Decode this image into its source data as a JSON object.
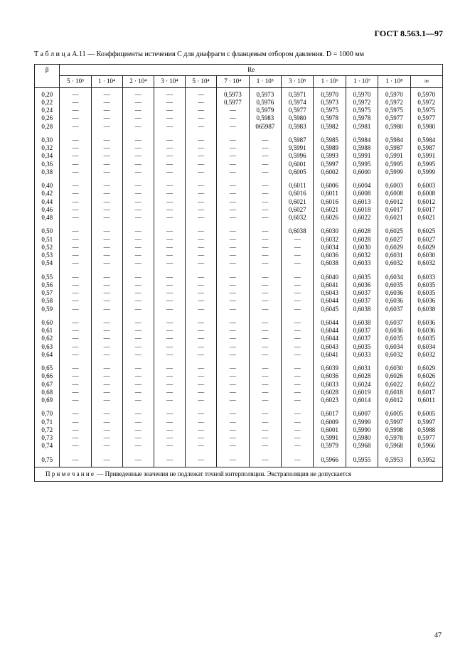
{
  "doc_id": "ГОСТ 8.563.1—97",
  "caption_label": "Т а б л и ц а",
  "caption_num": "А.11 —",
  "caption_text": "Коэффициенты истечения C для диафрагм с фланцевым отбором давления. D = 1000 мм",
  "note_label": "П р и м е ч а н и е",
  "note_text": "— Приведенные значения не подлежат точной интерполяции. Экстраполяция не допускается",
  "page_num": "47",
  "head_beta": "β",
  "head_re": "Re",
  "col_headers": [
    "5 · 10³",
    "1 · 10⁴",
    "2 · 10⁴",
    "3 · 10⁴",
    "5 · 10⁴",
    "7 · 10⁴",
    "1 · 10⁵",
    "3 · 10⁵",
    "1 · 10⁶",
    "1 · 10⁷",
    "1 · 10⁸",
    "∞"
  ],
  "dash": "—",
  "groups": [
    [
      {
        "b": "0,20",
        "v": [
          "—",
          "—",
          "—",
          "—",
          "—",
          "0,5973",
          "0,5973",
          "0,5971",
          "0,5970",
          "0,5970",
          "0,5970",
          "0,5970"
        ]
      },
      {
        "b": "0,22",
        "v": [
          "—",
          "—",
          "—",
          "—",
          "—",
          "0,5977",
          "0,5976",
          "0,5974",
          "0,5973",
          "0,5972",
          "0,5972",
          "0,5972"
        ]
      },
      {
        "b": "0,24",
        "v": [
          "—",
          "—",
          "—",
          "—",
          "—",
          "—",
          "0,5979",
          "0,5977",
          "0,5975",
          "0,5975",
          "0,5975",
          "0,5975"
        ]
      },
      {
        "b": "0,26",
        "v": [
          "—",
          "—",
          "—",
          "—",
          "—",
          "—",
          "0,5983",
          "0,5980",
          "0,5978",
          "0,5978",
          "0,5977",
          "0,5977"
        ]
      },
      {
        "b": "0,28",
        "v": [
          "—",
          "—",
          "—",
          "—",
          "—",
          "—",
          "065987",
          "0,5983",
          "0,5982",
          "0,5981",
          "0,5980",
          "0,5980"
        ]
      }
    ],
    [
      {
        "b": "0,30",
        "v": [
          "—",
          "—",
          "—",
          "—",
          "—",
          "—",
          "—",
          "0,5987",
          "0,5985",
          "0,5984",
          "0,5984",
          "0,5984"
        ]
      },
      {
        "b": "0,32",
        "v": [
          "—",
          "—",
          "—",
          "—",
          "—",
          "—",
          "—",
          "9,5991",
          "0,5989",
          "0,5988",
          "0,5987",
          "0,5987"
        ]
      },
      {
        "b": "0,34",
        "v": [
          "—",
          "—",
          "—",
          "—",
          "—",
          "—",
          "—",
          "0,5996",
          "0,5993",
          "0,5991",
          "0,5991",
          "0,5991"
        ]
      },
      {
        "b": "0,36",
        "v": [
          "—",
          "—",
          "—",
          "—",
          "—",
          "—",
          "—",
          "0,6001",
          "0,5997",
          "0,5995",
          "0,5995",
          "0,5995"
        ]
      },
      {
        "b": "0,38",
        "v": [
          "—",
          "—",
          "—",
          "—",
          "—",
          "—",
          "—",
          "0,6005",
          "0,6002",
          "0,6000",
          "0,5999",
          "0,5999"
        ]
      }
    ],
    [
      {
        "b": "0,40",
        "v": [
          "—",
          "—",
          "—",
          "—",
          "—",
          "—",
          "—",
          "0,6011",
          "0,6006",
          "0,6004",
          "0,6003",
          "0,6003"
        ]
      },
      {
        "b": "0,42",
        "v": [
          "—",
          "—",
          "—",
          "—",
          "—",
          "—",
          "—",
          "0,6016",
          "0,6011",
          "0,6008",
          "0,6008",
          "0,6008"
        ]
      },
      {
        "b": "0,44",
        "v": [
          "—",
          "—",
          "—",
          "—",
          "—",
          "—",
          "—",
          "0,6021",
          "0,6016",
          "0,6013",
          "0,6012",
          "0,6012"
        ]
      },
      {
        "b": "0,46",
        "v": [
          "—",
          "—",
          "—",
          "—",
          "—",
          "—",
          "—",
          "0,6027",
          "0,6021",
          "0,6018",
          "0,6017",
          "0,6017"
        ]
      },
      {
        "b": "0,48",
        "v": [
          "—",
          "—",
          "—",
          "—",
          "—",
          "—",
          "—",
          "0,6032",
          "0,6026",
          "0,6022",
          "0,6021",
          "0,6021"
        ]
      }
    ],
    [
      {
        "b": "0,50",
        "v": [
          "—",
          "—",
          "—",
          "—",
          "—",
          "—",
          "—",
          "0,6038",
          "0,6030",
          "0,6028",
          "0,6025",
          "0,6025"
        ]
      },
      {
        "b": "0,51",
        "v": [
          "—",
          "—",
          "—",
          "—",
          "—",
          "—",
          "—",
          "—",
          "0,6032",
          "0,6028",
          "0,6027",
          "0,6027"
        ]
      },
      {
        "b": "0,52",
        "v": [
          "—",
          "—",
          "—",
          "—",
          "—",
          "—",
          "—",
          "—",
          "0,6034",
          "0,6030",
          "0,6029",
          "0,6029"
        ]
      },
      {
        "b": "0,53",
        "v": [
          "—",
          "—",
          "—",
          "—",
          "—",
          "—",
          "—",
          "—",
          "0,6036",
          "0,6032",
          "0,6031",
          "0,6030"
        ]
      },
      {
        "b": "0,54",
        "v": [
          "—",
          "—",
          "—",
          "—",
          "—",
          "—",
          "—",
          "—",
          "0,6038",
          "0,6033",
          "0,6032",
          "0,6032"
        ]
      }
    ],
    [
      {
        "b": "0,55",
        "v": [
          "—",
          "—",
          "—",
          "—",
          "—",
          "—",
          "—",
          "—",
          "0,6040",
          "0,6035",
          "0,6034",
          "0,6033"
        ]
      },
      {
        "b": "0,56",
        "v": [
          "—",
          "—",
          "—",
          "—",
          "—",
          "—",
          "—",
          "—",
          "0,6041",
          "0,6036",
          "0,6035",
          "0,6035"
        ]
      },
      {
        "b": "0,57",
        "v": [
          "—",
          "—",
          "—",
          "—",
          "—",
          "—",
          "—",
          "—",
          "0,6043",
          "0,6037",
          "0,6036",
          "0,6035"
        ]
      },
      {
        "b": "0,58",
        "v": [
          "—",
          "—",
          "—",
          "—",
          "—",
          "—",
          "—",
          "—",
          "0,6044",
          "0,6037",
          "0,6036",
          "0,6036"
        ]
      },
      {
        "b": "0,59",
        "v": [
          "—",
          "—",
          "—",
          "—",
          "—",
          "—",
          "—",
          "—",
          "0,6045",
          "0,6038",
          "0,6037",
          "0,6038"
        ]
      }
    ],
    [
      {
        "b": "0,60",
        "v": [
          "—",
          "—",
          "—",
          "—",
          "—",
          "—",
          "—",
          "—",
          "0,6044",
          "0,6038",
          "0,6037",
          "0,6036"
        ]
      },
      {
        "b": "0,61",
        "v": [
          "—",
          "—",
          "—",
          "—",
          "—",
          "—",
          "—",
          "—",
          "0,6044",
          "0,6037",
          "0,6036",
          "0,6036"
        ]
      },
      {
        "b": "0,62",
        "v": [
          "—",
          "—",
          "—",
          "—",
          "—",
          "—",
          "—",
          "—",
          "0,6044",
          "0,6037",
          "0,6035",
          "0,6035"
        ]
      },
      {
        "b": "0,63",
        "v": [
          "—",
          "—",
          "—",
          "—",
          "—",
          "—",
          "—",
          "—",
          "0,6043",
          "0,6035",
          "0,6034",
          "0,6034"
        ]
      },
      {
        "b": "0,64",
        "v": [
          "—",
          "—",
          "—",
          "—",
          "—",
          "—",
          "—",
          "—",
          "0,6041",
          "0,6033",
          "0,6032",
          "0,6032"
        ]
      }
    ],
    [
      {
        "b": "0,65",
        "v": [
          "—",
          "—",
          "—",
          "—",
          "—",
          "—",
          "—",
          "—",
          "0,6039",
          "0,6031",
          "0,6030",
          "0,6029"
        ]
      },
      {
        "b": "0,66",
        "v": [
          "—",
          "—",
          "—",
          "—",
          "—",
          "—",
          "—",
          "—",
          "0,6036",
          "0,6028",
          "0,6026",
          "0,6026"
        ]
      },
      {
        "b": "0,67",
        "v": [
          "—",
          "—",
          "—",
          "—",
          "—",
          "—",
          "—",
          "—",
          "0,6033",
          "0,6024",
          "0,6022",
          "0,6022"
        ]
      },
      {
        "b": "0,68",
        "v": [
          "—",
          "—",
          "—",
          "—",
          "—",
          "—",
          "—",
          "—",
          "0,6028",
          "0,6019",
          "0,6018",
          "0,6017"
        ]
      },
      {
        "b": "0,69",
        "v": [
          "—",
          "—",
          "—",
          "—",
          "—",
          "—",
          "—",
          "—",
          "0,6023",
          "0,6014",
          "0,6012",
          "0,6011"
        ]
      }
    ],
    [
      {
        "b": "0,70",
        "v": [
          "—",
          "—",
          "—",
          "—",
          "—",
          "—",
          "—",
          "—",
          "0,6017",
          "0,6007",
          "0,6005",
          "0,6005"
        ]
      },
      {
        "b": "0,71",
        "v": [
          "—",
          "—",
          "—",
          "—",
          "—",
          "—",
          "—",
          "—",
          "0,6009",
          "0,5999",
          "0,5997",
          "0,5997"
        ]
      },
      {
        "b": "0,72",
        "v": [
          "—",
          "—",
          "—",
          "—",
          "—",
          "—",
          "—",
          "—",
          "0,6001",
          "0,5990",
          "0,5998",
          "0,5988"
        ]
      },
      {
        "b": "0,73",
        "v": [
          "—",
          "—",
          "—",
          "—",
          "—",
          "—",
          "—",
          "—",
          "0,5991",
          "0,5980",
          "0,5978",
          "0,5977"
        ]
      },
      {
        "b": "0,74",
        "v": [
          "—",
          "—",
          "—",
          "—",
          "—",
          "—",
          "—",
          "—",
          "0,5979",
          "0,5968",
          "0,5968",
          "0,5966"
        ]
      }
    ],
    [
      {
        "b": "0,75",
        "v": [
          "—",
          "—",
          "—",
          "—",
          "—",
          "—",
          "—",
          "—",
          "0,5966",
          "0,5955",
          "0,5953",
          "0,5952"
        ]
      }
    ]
  ]
}
